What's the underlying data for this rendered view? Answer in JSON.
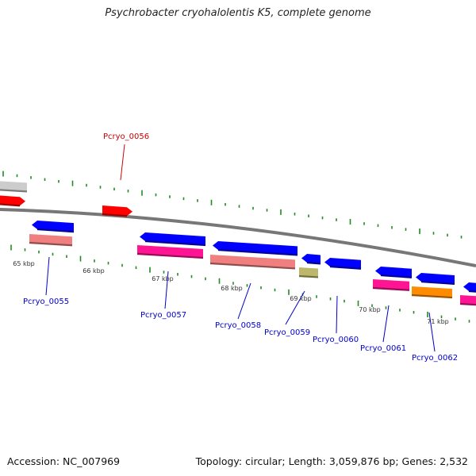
{
  "title": "Psychrobacter cryohalolentis K5, complete genome",
  "footer": {
    "accession": "Accession: NC_007969",
    "summary": "Topology: circular; Length: 3,059,876 bp; Genes: 2,532"
  },
  "colors": {
    "forward_cds": "#ff0000",
    "reverse_cds": "#0000ff",
    "rna": "#ff1493",
    "rna_pale": "#f08080",
    "gray": "#cccccc",
    "olive": "#bdb76b",
    "orange": "#ff8c00",
    "tick": "#228b22",
    "backbone": "#777777"
  },
  "kbp_labels": [
    {
      "text": "65 kbp"
    },
    {
      "text": "66 kbp"
    },
    {
      "text": "67 kbp"
    },
    {
      "text": "68 kbp"
    },
    {
      "text": "69 kbp"
    },
    {
      "text": "70 kbp"
    },
    {
      "text": "71 kbp"
    }
  ],
  "gene_labels": [
    {
      "text": "Pcryo_0055",
      "color": "#0000cc"
    },
    {
      "text": "Pcryo_0056",
      "color": "#cc0000"
    },
    {
      "text": "Pcryo_0057",
      "color": "#0000cc"
    },
    {
      "text": "Pcryo_0058",
      "color": "#0000cc"
    },
    {
      "text": "Pcryo_0059",
      "color": "#0000cc"
    },
    {
      "text": "Pcryo_0060",
      "color": "#0000cc"
    },
    {
      "text": "Pcryo_0061",
      "color": "#0000cc"
    },
    {
      "text": "Pcryo_0062",
      "color": "#0000cc"
    }
  ]
}
